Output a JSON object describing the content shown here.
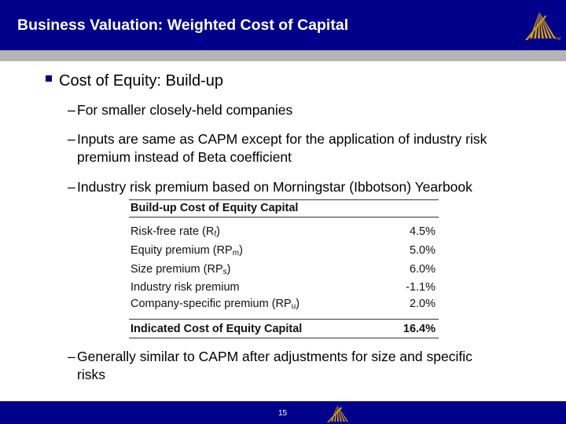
{
  "header": {
    "title": "Business Valuation: Weighted Cost of Capital",
    "logo_icon": "peak-arrow-logo-icon",
    "trademark": "TM"
  },
  "main": {
    "bullet": "Cost of Equity: Build-up",
    "subpoints": [
      {
        "dash": "–",
        "lines": [
          "For smaller closely-held companies"
        ]
      },
      {
        "dash": "–",
        "lines": [
          "Inputs are same as CAPM except for the application of industry risk",
          "premium instead of Beta coefficient"
        ]
      },
      {
        "dash": "–",
        "lines": [
          "Industry risk premium based on Morningstar (Ibbotson) Yearbook"
        ]
      },
      {
        "dash": "–",
        "lines": [
          "Generally similar to CAPM after adjustments for size and specific",
          "risks"
        ]
      }
    ],
    "table": {
      "title": "Build-up Cost of Equity Capital",
      "rows": [
        {
          "label": "Risk-free rate (R",
          "sub": "f",
          "close": ")",
          "value": "4.5%"
        },
        {
          "label": "Equity premium (RP",
          "sub": "m",
          "close": ")",
          "value": "5.0%"
        },
        {
          "label": "Size premium (RP",
          "sub": "s",
          "close": ")",
          "value": "6.0%"
        },
        {
          "label": "Industry risk premium",
          "sub": "",
          "close": "",
          "value": "-1.1%"
        },
        {
          "label": "Company-specific premium (RP",
          "sub": "u",
          "close": ")",
          "value": "2.0%"
        }
      ],
      "total_label": "Indicated Cost of Equity Capital",
      "total_value": "16.4%"
    }
  },
  "footer": {
    "page_number": "15",
    "logo_icon": "peak-arrow-logo-icon"
  },
  "colors": {
    "header_bg": "#00008b",
    "stripe": "#b4b4b4",
    "logo_gold": "#d4a012"
  }
}
